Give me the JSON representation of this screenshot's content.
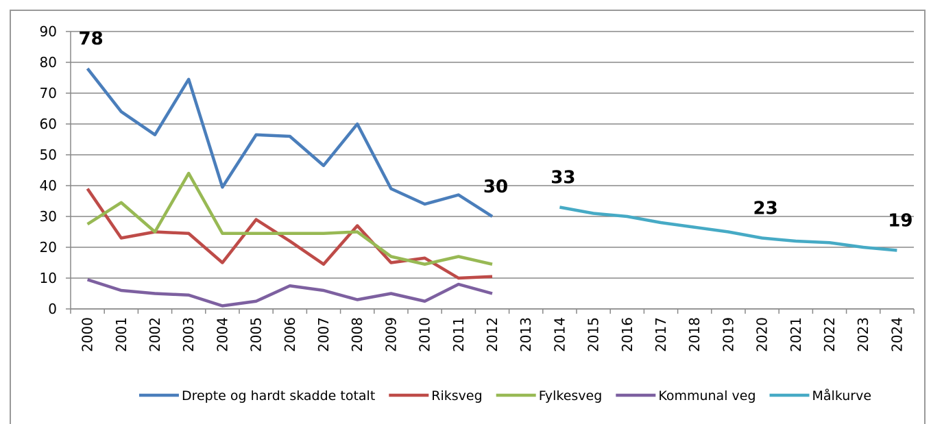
{
  "chart_data": {
    "type": "line",
    "categories": [
      "2000",
      "2001",
      "2002",
      "2003",
      "2004",
      "2005",
      "2006",
      "2007",
      "2008",
      "2009",
      "2010",
      "2011",
      "2012",
      "2013",
      "2014",
      "2015",
      "2016",
      "2017",
      "2018",
      "2019",
      "2020",
      "2021",
      "2022",
      "2023",
      "2024"
    ],
    "series": [
      {
        "name": "Drepte og hardt skadde totalt",
        "color": "#4a7ebb",
        "values": [
          78,
          64,
          56.5,
          74.5,
          39.5,
          56.5,
          56,
          46.5,
          60,
          39,
          34,
          37,
          30,
          null,
          null,
          null,
          null,
          null,
          null,
          null,
          null,
          null,
          null,
          null,
          null
        ],
        "value_labels": [
          "78",
          null,
          null,
          null,
          null,
          null,
          null,
          null,
          null,
          null,
          null,
          null,
          "30",
          null,
          null,
          null,
          null,
          null,
          null,
          null,
          null,
          null,
          null,
          null,
          null
        ]
      },
      {
        "name": "Riksveg",
        "color": "#be4b48",
        "values": [
          39,
          23,
          25,
          24.5,
          15,
          29,
          22,
          14.5,
          27,
          15,
          16.5,
          10,
          10.5,
          null,
          null,
          null,
          null,
          null,
          null,
          null,
          null,
          null,
          null,
          null,
          null
        ]
      },
      {
        "name": "Fylkesveg",
        "color": "#98b954",
        "values": [
          27.5,
          34.5,
          25,
          44,
          24.5,
          24.5,
          24.5,
          24.5,
          25,
          17,
          14.5,
          17,
          14.5,
          null,
          null,
          null,
          null,
          null,
          null,
          null,
          null,
          null,
          null,
          null,
          null
        ]
      },
      {
        "name": "Kommunal veg",
        "color": "#7d60a0",
        "values": [
          9.5,
          6,
          5,
          4.5,
          1,
          2.5,
          7.5,
          6,
          3,
          5,
          2.5,
          8,
          5,
          null,
          null,
          null,
          null,
          null,
          null,
          null,
          null,
          null,
          null,
          null,
          null
        ]
      },
      {
        "name": "Målkurve",
        "color": "#46aac5",
        "values": [
          null,
          null,
          null,
          null,
          null,
          null,
          null,
          null,
          null,
          null,
          null,
          null,
          null,
          null,
          33,
          31,
          30,
          28,
          26.5,
          25,
          23,
          22,
          21.5,
          20,
          19
        ],
        "value_labels": [
          null,
          null,
          null,
          null,
          null,
          null,
          null,
          null,
          null,
          null,
          null,
          null,
          null,
          null,
          "33",
          null,
          null,
          null,
          null,
          null,
          "23",
          null,
          null,
          null,
          "19"
        ]
      }
    ],
    "ylim": [
      0,
      90
    ],
    "yticks": [
      0,
      10,
      20,
      30,
      40,
      50,
      60,
      70,
      80,
      90
    ],
    "grid": true,
    "legend": "bottom"
  }
}
